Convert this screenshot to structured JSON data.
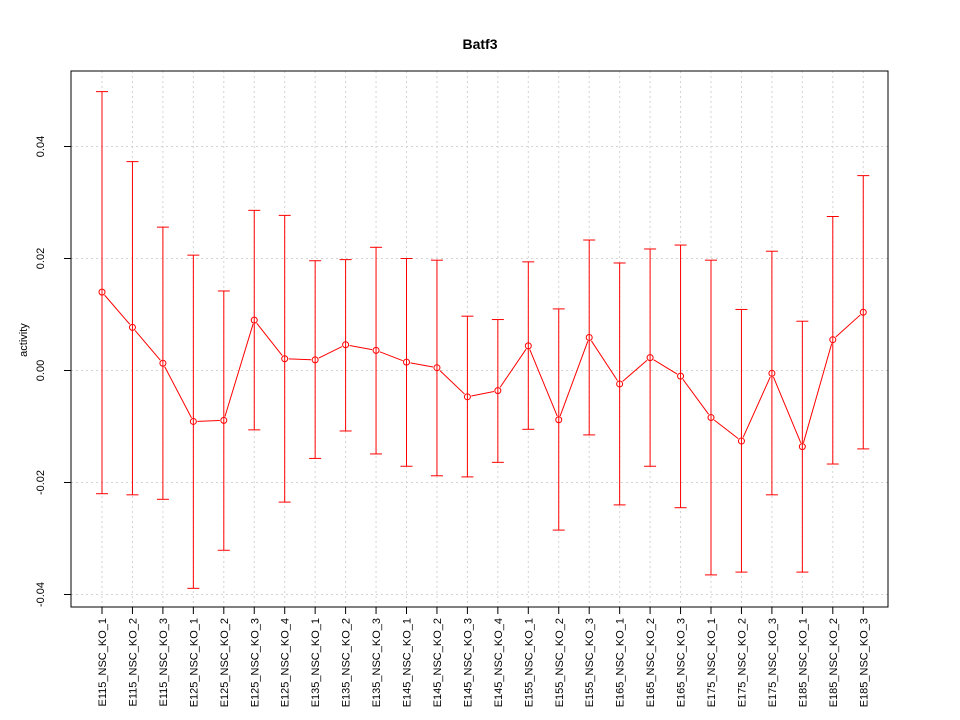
{
  "chart_data": {
    "type": "line",
    "title": "Batf3",
    "xlabel": "",
    "ylabel": "activity",
    "ylim": [
      -0.042,
      0.053
    ],
    "yticks": [
      -0.04,
      -0.02,
      0.0,
      0.02,
      0.04
    ],
    "ytick_labels": [
      "-0.04",
      "-0.02",
      "0.00",
      "0.02",
      "0.04"
    ],
    "grid": true,
    "color": "#ff0000",
    "categories": [
      "E115_NSC_KO_1",
      "E115_NSC_KO_2",
      "E115_NSC_KO_3",
      "E125_NSC_KO_1",
      "E125_NSC_KO_2",
      "E125_NSC_KO_3",
      "E125_NSC_KO_4",
      "E135_NSC_KO_1",
      "E135_NSC_KO_2",
      "E135_NSC_KO_3",
      "E145_NSC_KO_1",
      "E145_NSC_KO_2",
      "E145_NSC_KO_3",
      "E145_NSC_KO_4",
      "E155_NSC_KO_1",
      "E155_NSC_KO_2",
      "E155_NSC_KO_3",
      "E165_NSC_KO_1",
      "E165_NSC_KO_2",
      "E165_NSC_KO_3",
      "E175_NSC_KO_1",
      "E175_NSC_KO_2",
      "E175_NSC_KO_3",
      "E185_NSC_KO_1",
      "E185_NSC_KO_2",
      "E185_NSC_KO_3"
    ],
    "values": [
      0.014,
      0.0077,
      0.0013,
      -0.0091,
      -0.0089,
      0.009,
      0.0021,
      0.0019,
      0.0046,
      0.0036,
      0.0015,
      0.0005,
      -0.0047,
      -0.0036,
      0.0044,
      -0.0088,
      0.0059,
      -0.0024,
      0.0023,
      -0.001,
      -0.0084,
      -0.0126,
      -0.0005,
      -0.0136,
      0.0055,
      0.0104
    ],
    "upper": [
      0.0498,
      0.0373,
      0.0256,
      0.0206,
      0.0142,
      0.0286,
      0.0277,
      0.0196,
      0.0198,
      0.022,
      0.02,
      0.0197,
      0.0097,
      0.0091,
      0.0194,
      0.011,
      0.0233,
      0.0192,
      0.0217,
      0.0224,
      0.0197,
      0.0109,
      0.0213,
      0.0088,
      0.0275,
      0.0348
    ],
    "lower": [
      -0.022,
      -0.0222,
      -0.023,
      -0.0389,
      -0.0321,
      -0.0106,
      -0.0235,
      -0.0157,
      -0.0108,
      -0.0149,
      -0.0171,
      -0.0188,
      -0.019,
      -0.0164,
      -0.0105,
      -0.0285,
      -0.0115,
      -0.024,
      -0.0171,
      -0.0245,
      -0.0365,
      -0.036,
      -0.0222,
      -0.036,
      -0.0167,
      -0.014
    ]
  }
}
